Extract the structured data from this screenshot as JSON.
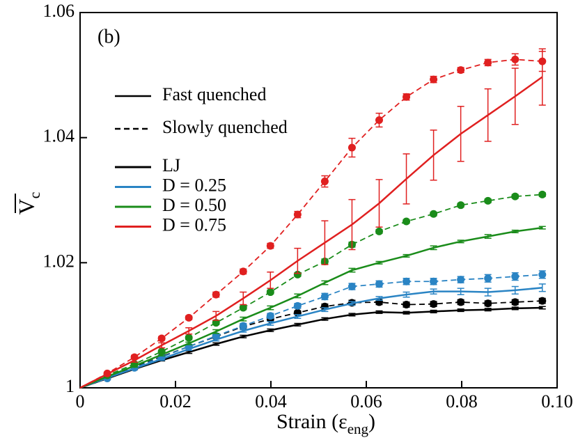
{
  "chart_data": {
    "type": "line",
    "annotation": "(b)",
    "x_label": "Strain (ε",
    "x_label_sub": "eng",
    "x_label_end": ")",
    "y_label": "V",
    "y_label_sub": "c",
    "xlim": [
      0,
      0.1
    ],
    "ylim": [
      1,
      1.06
    ],
    "xticks": [
      0,
      0.02,
      0.04,
      0.06,
      0.08,
      {
        "value": 0.1,
        "label": "0.10"
      }
    ],
    "yticks": [
      1,
      1.02,
      1.04,
      1.06
    ],
    "x": [
      0,
      0.0057,
      0.0114,
      0.0171,
      0.0228,
      0.0285,
      0.0342,
      0.0399,
      0.0456,
      0.0513,
      0.057,
      0.0627,
      0.0684,
      0.0741,
      0.0798,
      0.0855,
      0.0912,
      0.0969
    ],
    "line_styles": [
      {
        "name": "Fast quenched",
        "dash": "solid"
      },
      {
        "name": "Slowly quenched",
        "dash": "dashed"
      }
    ],
    "groups": [
      {
        "name": "LJ",
        "color": "#000000",
        "fast": {
          "values": [
            1.0,
            1.0015,
            1.003,
            1.0044,
            1.0057,
            1.007,
            1.0082,
            1.0092,
            1.0101,
            1.011,
            1.0117,
            1.0121,
            1.012,
            1.0122,
            1.0124,
            1.0125,
            1.0127,
            1.0128
          ],
          "errors": [
            0,
            0.0001,
            0.0001,
            0.0001,
            0.0002,
            0.0002,
            0.0002,
            0.0002,
            0.0002,
            0.0002,
            0.0002,
            0.0002,
            0.0002,
            0.0002,
            0.0002,
            0.0002,
            0.0002,
            0.0002
          ]
        },
        "slow": {
          "values": [
            1.0,
            1.0018,
            1.0033,
            1.005,
            1.0066,
            1.0082,
            1.0098,
            1.011,
            1.012,
            1.013,
            1.0136,
            1.0137,
            1.0133,
            1.0134,
            1.0137,
            1.0135,
            1.0137,
            1.0139
          ],
          "errors": [
            0,
            0.0002,
            0.0002,
            0.0002,
            0.0003,
            0.0003,
            0.0003,
            0.0003,
            0.0003,
            0.0004,
            0.0004,
            0.0004,
            0.0004,
            0.0004,
            0.0004,
            0.0004,
            0.0004,
            0.0004
          ]
        }
      },
      {
        "name": "D = 0.25",
        "color": "#2a84c4",
        "fast": {
          "values": [
            1.0,
            1.0016,
            1.0031,
            1.0046,
            1.0062,
            1.0077,
            1.0091,
            1.0103,
            1.0114,
            1.0125,
            1.0135,
            1.0143,
            1.0149,
            1.0154,
            1.0154,
            1.0153,
            1.0156,
            1.016
          ],
          "errors": [
            0,
            0.0001,
            0.0001,
            0.0002,
            0.0002,
            0.0002,
            0.0002,
            0.0003,
            0.0003,
            0.0003,
            0.0003,
            0.0003,
            0.0004,
            0.0004,
            0.0005,
            0.0006,
            0.0006,
            0.0006
          ]
        },
        "slow": {
          "values": [
            1.0,
            1.0015,
            1.0032,
            1.0049,
            1.0066,
            1.0083,
            1.0099,
            1.0115,
            1.0131,
            1.0146,
            1.0162,
            1.0166,
            1.017,
            1.017,
            1.0173,
            1.0175,
            1.0178,
            1.0181
          ],
          "errors": [
            0,
            0.0002,
            0.0002,
            0.0003,
            0.0003,
            0.0003,
            0.0004,
            0.0004,
            0.0004,
            0.0005,
            0.0005,
            0.0005,
            0.0005,
            0.0005,
            0.0005,
            0.0006,
            0.0006,
            0.0006
          ]
        }
      },
      {
        "name": "D = 0.50",
        "color": "#1a8c1a",
        "fast": {
          "values": [
            1.0,
            1.0018,
            1.0035,
            1.0053,
            1.0071,
            1.009,
            1.011,
            1.0128,
            1.0147,
            1.0168,
            1.0188,
            1.02,
            1.0211,
            1.0224,
            1.0234,
            1.0242,
            1.025,
            1.0256
          ],
          "errors": [
            0,
            0.0001,
            0.0002,
            0.0002,
            0.0002,
            0.0003,
            0.0003,
            0.0003,
            0.0003,
            0.0003,
            0.0003,
            0.0002,
            0.0002,
            0.0003,
            0.0002,
            0.0003,
            0.0002,
            0.0002
          ]
        },
        "slow": {
          "values": [
            1.0,
            1.002,
            1.0038,
            1.0058,
            1.008,
            1.0104,
            1.0128,
            1.0153,
            1.0181,
            1.0202,
            1.0229,
            1.025,
            1.0266,
            1.0278,
            1.0292,
            1.0299,
            1.0306,
            1.0309
          ],
          "errors": [
            0,
            0.0002,
            0.0002,
            0.0002,
            0.0003,
            0.0003,
            0.0003,
            0.0003,
            0.0003,
            0.0004,
            0.0004,
            0.0003,
            0.0003,
            0.0003,
            0.0003,
            0.0003,
            0.0003,
            0.0003
          ]
        }
      },
      {
        "name": "D = 0.75",
        "color": "#e02020",
        "fast": {
          "values": [
            1.0,
            1.0022,
            1.0044,
            1.0068,
            1.0091,
            1.0115,
            1.0143,
            1.0172,
            1.0203,
            1.0232,
            1.0261,
            1.0295,
            1.0334,
            1.0372,
            1.0406,
            1.0436,
            1.0466,
            1.0497
          ],
          "errors": [
            0,
            0.0002,
            0.0003,
            0.0004,
            0.0005,
            0.0007,
            0.001,
            0.0013,
            0.002,
            0.0035,
            0.004,
            0.0038,
            0.004,
            0.004,
            0.0044,
            0.0042,
            0.0045,
            0.0045
          ]
        },
        "slow": {
          "values": [
            1.0,
            1.0023,
            1.0049,
            1.0079,
            1.0112,
            1.0149,
            1.0186,
            1.0227,
            1.0277,
            1.033,
            1.0384,
            1.0428,
            1.0465,
            1.0493,
            1.0508,
            1.052,
            1.0525,
            1.0522
          ],
          "errors": [
            0,
            0.0002,
            0.0003,
            0.0003,
            0.0003,
            0.0004,
            0.0004,
            0.0004,
            0.0005,
            0.0009,
            0.0015,
            0.0011,
            0.0005,
            0.0005,
            0.0004,
            0.0005,
            0.0009,
            0.0016
          ]
        }
      }
    ]
  }
}
